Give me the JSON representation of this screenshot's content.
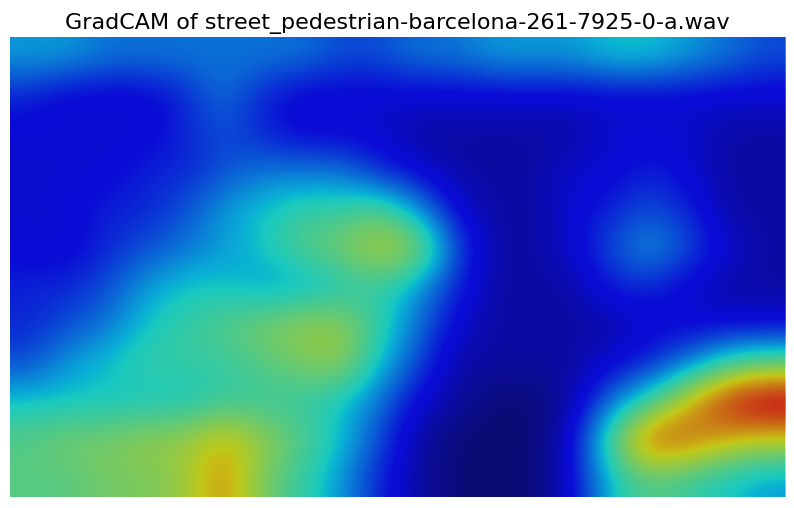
{
  "chart_data": {
    "type": "heatmap",
    "title": "GradCAM of street_pedestrian-barcelona-261-7925-0-a.wav",
    "tick_labels": false,
    "cells": [
      [
        0.35,
        0.35,
        0.3,
        0.3,
        0.3,
        0.3,
        0.3,
        0.3,
        0.25,
        0.25,
        0.3,
        0.3,
        0.35,
        0.35,
        0.35,
        0.4,
        0.4,
        0.35,
        0.3,
        0.25
      ],
      [
        0.2,
        0.15,
        0.15,
        0.15,
        0.2,
        0.3,
        0.2,
        0.15,
        0.15,
        0.15,
        0.15,
        0.15,
        0.15,
        0.15,
        0.15,
        0.15,
        0.15,
        0.15,
        0.15,
        0.15
      ],
      [
        0.15,
        0.15,
        0.15,
        0.15,
        0.2,
        0.25,
        0.2,
        0.15,
        0.15,
        0.15,
        0.1,
        0.1,
        0.1,
        0.1,
        0.1,
        0.15,
        0.15,
        0.15,
        0.1,
        0.1
      ],
      [
        0.15,
        0.15,
        0.15,
        0.2,
        0.2,
        0.25,
        0.3,
        0.3,
        0.3,
        0.2,
        0.15,
        0.1,
        0.1,
        0.1,
        0.15,
        0.15,
        0.2,
        0.15,
        0.1,
        0.1
      ],
      [
        0.15,
        0.15,
        0.2,
        0.2,
        0.25,
        0.35,
        0.4,
        0.45,
        0.45,
        0.5,
        0.35,
        0.15,
        0.1,
        0.1,
        0.15,
        0.2,
        0.25,
        0.2,
        0.1,
        0.1
      ],
      [
        0.15,
        0.15,
        0.2,
        0.25,
        0.3,
        0.35,
        0.4,
        0.5,
        0.55,
        0.65,
        0.6,
        0.25,
        0.1,
        0.1,
        0.15,
        0.25,
        0.35,
        0.25,
        0.15,
        0.1
      ],
      [
        0.2,
        0.2,
        0.25,
        0.35,
        0.4,
        0.4,
        0.35,
        0.35,
        0.4,
        0.45,
        0.35,
        0.2,
        0.1,
        0.1,
        0.1,
        0.2,
        0.2,
        0.15,
        0.1,
        0.1
      ],
      [
        0.2,
        0.25,
        0.3,
        0.4,
        0.45,
        0.5,
        0.55,
        0.6,
        0.6,
        0.45,
        0.3,
        0.15,
        0.1,
        0.1,
        0.1,
        0.1,
        0.15,
        0.15,
        0.15,
        0.15
      ],
      [
        0.25,
        0.35,
        0.4,
        0.45,
        0.45,
        0.45,
        0.5,
        0.55,
        0.6,
        0.4,
        0.25,
        0.1,
        0.1,
        0.1,
        0.1,
        0.15,
        0.2,
        0.3,
        0.45,
        0.5
      ],
      [
        0.4,
        0.4,
        0.4,
        0.4,
        0.4,
        0.45,
        0.45,
        0.45,
        0.4,
        0.3,
        0.15,
        0.1,
        0.05,
        0.05,
        0.1,
        0.3,
        0.45,
        0.7,
        0.9,
        1.0
      ],
      [
        0.5,
        0.55,
        0.55,
        0.6,
        0.6,
        0.7,
        0.6,
        0.5,
        0.4,
        0.25,
        0.1,
        0.05,
        0.05,
        0.05,
        0.15,
        0.5,
        0.85,
        0.8,
        0.7,
        0.65
      ],
      [
        0.5,
        0.5,
        0.55,
        0.55,
        0.6,
        0.75,
        0.55,
        0.45,
        0.35,
        0.2,
        0.1,
        0.05,
        0.05,
        0.05,
        0.15,
        0.4,
        0.5,
        0.45,
        0.4,
        0.35
      ]
    ]
  }
}
